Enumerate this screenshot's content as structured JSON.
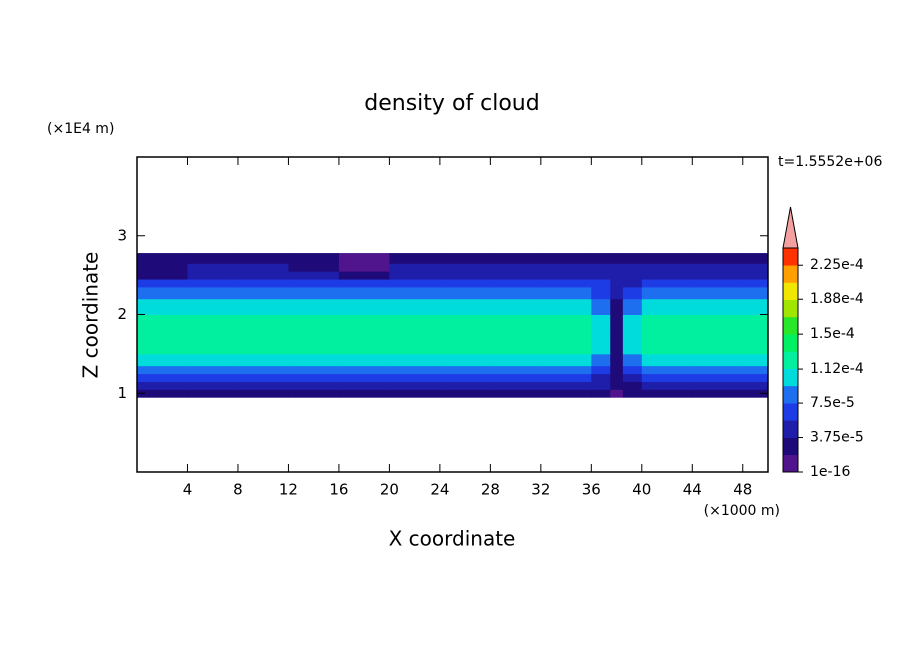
{
  "chart_data": {
    "type": "contour",
    "title": "density of cloud",
    "xlabel": "X coordinate",
    "ylabel": "Z coordinate",
    "x_unit": "(×1000 m)",
    "y_unit": "(×1E4 m)",
    "annotation": "t=1.5552e+06",
    "xlim": [
      0,
      50
    ],
    "xticks": [
      4,
      8,
      12,
      16,
      20,
      24,
      28,
      32,
      36,
      40,
      44,
      48
    ],
    "ylim": [
      0,
      4
    ],
    "yticks": [
      1,
      2,
      3
    ],
    "x_bins": [
      0,
      4,
      8,
      12,
      16,
      20,
      24,
      28,
      32,
      36,
      37.5,
      38.5,
      40,
      44,
      48,
      50
    ],
    "y_bins": [
      0.95,
      1.05,
      1.15,
      1.25,
      1.35,
      1.5,
      1.75,
      2.0,
      2.2,
      2.35,
      2.45,
      2.55,
      2.65,
      2.78
    ],
    "z": [
      [
        2e-05,
        2e-05,
        2e-05,
        2e-05,
        2e-05,
        2e-05,
        2e-05,
        2e-05,
        2e-05,
        2e-05,
        1e-05,
        2e-05,
        2e-05,
        2e-05,
        2e-05
      ],
      [
        4e-05,
        4e-05,
        4e-05,
        4e-05,
        4e-05,
        4e-05,
        4e-05,
        4e-05,
        4e-05,
        4e-05,
        2e-05,
        3e-05,
        4e-05,
        4e-05,
        4e-05
      ],
      [
        6e-05,
        6e-05,
        6e-05,
        6e-05,
        6e-05,
        6e-05,
        6e-05,
        6e-05,
        6e-05,
        5e-05,
        2e-05,
        4e-05,
        6e-05,
        6e-05,
        6e-05
      ],
      [
        9e-05,
        9e-05,
        9e-05,
        9e-05,
        9e-05,
        9e-05,
        9e-05,
        9e-05,
        9e-05,
        7e-05,
        3e-05,
        6e-05,
        9e-05,
        9e-05,
        9e-05
      ],
      [
        0.000105,
        0.000105,
        0.000105,
        0.000105,
        0.000105,
        0.000105,
        0.000105,
        0.000105,
        0.000105,
        9e-05,
        3e-05,
        8e-05,
        0.000105,
        0.000105,
        0.000105
      ],
      [
        0.00012,
        0.00012,
        0.00012,
        0.00012,
        0.00012,
        0.00012,
        0.00012,
        0.00012,
        0.00012,
        0.000105,
        3e-05,
        0.000105,
        0.00012,
        0.00012,
        0.00012
      ],
      [
        0.00012,
        0.00012,
        0.00012,
        0.00012,
        0.00012,
        0.00012,
        0.00012,
        0.00012,
        0.00012,
        0.000105,
        3e-05,
        0.000105,
        0.00012,
        0.00012,
        0.00012
      ],
      [
        0.000105,
        0.000105,
        0.000105,
        0.000105,
        0.000105,
        0.000105,
        0.000105,
        0.000105,
        0.000105,
        9e-05,
        3e-05,
        9e-05,
        0.000105,
        0.000105,
        0.000105
      ],
      [
        9e-05,
        9e-05,
        9e-05,
        9e-05,
        9e-05,
        9e-05,
        9e-05,
        9e-05,
        9e-05,
        7e-05,
        4e-05,
        6e-05,
        9e-05,
        9e-05,
        9e-05
      ],
      [
        7e-05,
        7e-05,
        7e-05,
        7e-05,
        7e-05,
        7e-05,
        7e-05,
        7e-05,
        7e-05,
        6e-05,
        4e-05,
        5e-05,
        7e-05,
        7e-05,
        7e-05
      ],
      [
        3e-05,
        5e-05,
        5e-05,
        5e-05,
        3e-05,
        5e-05,
        5e-05,
        5e-05,
        5e-05,
        5e-05,
        5e-05,
        5e-05,
        5e-05,
        5e-05,
        5e-05
      ],
      [
        3e-05,
        4e-05,
        4e-05,
        3e-05,
        1e-05,
        4e-05,
        4e-05,
        4e-05,
        4e-05,
        4e-05,
        4e-05,
        4e-05,
        4e-05,
        4e-05,
        4e-05
      ],
      [
        2.5e-05,
        2.5e-05,
        2.5e-05,
        2.5e-05,
        1e-05,
        2.5e-05,
        2.5e-05,
        2.5e-05,
        2.5e-05,
        2.5e-05,
        2.5e-05,
        2.5e-05,
        2.5e-05,
        2.5e-05,
        2.5e-05
      ]
    ],
    "clim": [
      1e-16,
      0.00024375
    ],
    "colors": [
      "#50148c",
      "#1e0a78",
      "#1e1eaa",
      "#1e3ce6",
      "#1e6ef0",
      "#00dcdc",
      "#00f0a0",
      "#00f064",
      "#28e628",
      "#a0e600",
      "#f0e600",
      "#ffa000",
      "#ff3200"
    ],
    "extend_color": "#f4a0a0",
    "colorbar_ticks": [
      {
        "value": 1e-16,
        "label": "1e-16"
      },
      {
        "value": 3.75e-05,
        "label": "3.75e-5"
      },
      {
        "value": 7.5e-05,
        "label": "7.5e-5"
      },
      {
        "value": 0.000112,
        "label": "1.12e-4"
      },
      {
        "value": 0.00015,
        "label": "1.5e-4"
      },
      {
        "value": 0.000188,
        "label": "1.88e-4"
      },
      {
        "value": 0.000225,
        "label": "2.25e-4"
      }
    ]
  }
}
